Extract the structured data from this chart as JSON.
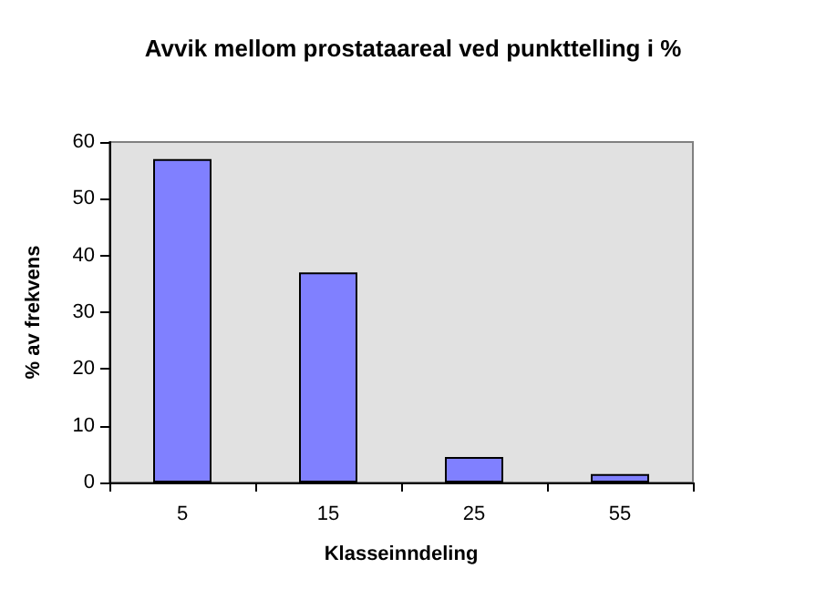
{
  "chart_data": {
    "type": "bar",
    "title": "Avvik mellom prostataareal ved punkttelling i %",
    "xlabel": "Klasseinndeling",
    "ylabel": "% av frekvens",
    "categories": [
      "5",
      "15",
      "25",
      "55"
    ],
    "values": [
      57,
      37,
      4.5,
      1.5
    ],
    "color": "#8080ff",
    "ylim": [
      0,
      60
    ],
    "yticks": [
      0,
      10,
      20,
      30,
      40,
      50,
      60
    ],
    "grid": false
  }
}
